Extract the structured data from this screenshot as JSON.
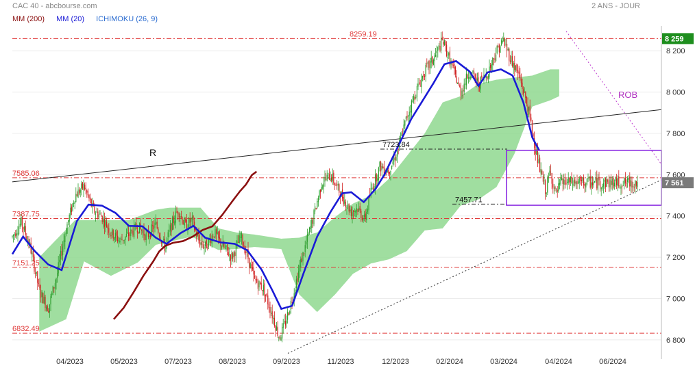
{
  "header": {
    "title": "CAC 40 - abcbourse.com",
    "period": "2 ANS - JOUR"
  },
  "legend": [
    {
      "label": "MM (200)",
      "color": "#8b1010"
    },
    {
      "label": "MM (20)",
      "color": "#1a1ad6"
    },
    {
      "label": "ICHIMOKU (26, 9)",
      "color": "#2a6bd0"
    }
  ],
  "chart_data": {
    "type": "candlestick",
    "y_axis": {
      "range": [
        6740,
        8320
      ],
      "ticks": [
        6800,
        7000,
        7200,
        7400,
        7600,
        7800,
        8000,
        8200
      ],
      "tick_labels": [
        "6 800",
        "7 000",
        "7 200",
        "7 400",
        "7 600",
        "7 800",
        "8 000",
        "8 200"
      ],
      "position": "right"
    },
    "x_axis": {
      "labels": [
        "04/2023",
        "05/2023",
        "07/2023",
        "08/2023",
        "09/2023",
        "11/2023",
        "12/2023",
        "02/2024",
        "03/2024",
        "04/2024",
        "06/2024"
      ]
    },
    "price_tags": [
      {
        "label": "8 259",
        "value": 8259,
        "color": "#1e8e1e"
      },
      {
        "label": "7 561",
        "value": 7561,
        "color": "#7a7a7a"
      }
    ],
    "levels": [
      {
        "label": "8259.19",
        "value": 8259.19
      },
      {
        "label": "7585.06",
        "value": 7585.06
      },
      {
        "label": "7387.75",
        "value": 7387.75
      },
      {
        "label": "7151.25",
        "value": 7151.25
      },
      {
        "label": "6832.49",
        "value": 6832.49
      }
    ],
    "annotations": [
      {
        "label": "R",
        "color": "#000000"
      },
      {
        "label": "ROB",
        "color": "#b030c0"
      },
      {
        "label": "7723.84",
        "value": 7723.84
      },
      {
        "label": "7457.71",
        "value": 7457.71
      }
    ],
    "range_box": {
      "top": 7718,
      "bottom": 7452,
      "color": "#8a2be2"
    },
    "ma200": [
      [
        0,
        6900
      ],
      [
        50,
        6955
      ],
      [
        100,
        7030
      ],
      [
        150,
        7110
      ],
      [
        200,
        7180
      ],
      [
        230,
        7228
      ],
      [
        260,
        7255
      ],
      [
        300,
        7270
      ],
      [
        350,
        7278
      ],
      [
        400,
        7300
      ],
      [
        450,
        7332
      ],
      [
        500,
        7350
      ],
      [
        550,
        7405
      ],
      [
        600,
        7470
      ],
      [
        640,
        7520
      ],
      [
        670,
        7552
      ],
      [
        700,
        7598
      ],
      [
        724,
        7615
      ]
    ],
    "ma20": [
      [
        0,
        7215
      ],
      [
        12,
        7300
      ],
      [
        25,
        7230
      ],
      [
        40,
        7165
      ],
      [
        55,
        7138
      ],
      [
        72,
        7375
      ],
      [
        85,
        7455
      ],
      [
        100,
        7450
      ],
      [
        115,
        7415
      ],
      [
        130,
        7352
      ],
      [
        145,
        7350
      ],
      [
        160,
        7295
      ],
      [
        172,
        7265
      ],
      [
        188,
        7318
      ],
      [
        202,
        7352
      ],
      [
        215,
        7295
      ],
      [
        232,
        7272
      ],
      [
        248,
        7265
      ],
      [
        262,
        7234
      ],
      [
        278,
        7140
      ],
      [
        290,
        7040
      ],
      [
        300,
        6950
      ],
      [
        312,
        6965
      ],
      [
        325,
        7125
      ],
      [
        340,
        7300
      ],
      [
        355,
        7420
      ],
      [
        368,
        7510
      ],
      [
        378,
        7515
      ],
      [
        392,
        7467
      ],
      [
        405,
        7530
      ],
      [
        415,
        7600
      ],
      [
        430,
        7735
      ],
      [
        445,
        7870
      ],
      [
        460,
        7975
      ],
      [
        470,
        8045
      ],
      [
        482,
        8135
      ],
      [
        495,
        8150
      ],
      [
        510,
        8100
      ],
      [
        520,
        8030
      ],
      [
        530,
        8095
      ],
      [
        545,
        8110
      ],
      [
        558,
        8080
      ],
      [
        570,
        7950
      ],
      [
        580,
        7780
      ],
      [
        588,
        7715
      ]
    ],
    "ichimoku_up": [
      [
        30,
        7200
      ],
      [
        70,
        7380
      ],
      [
        130,
        7380
      ],
      [
        160,
        7430
      ],
      [
        175,
        7440
      ],
      [
        210,
        7440
      ],
      [
        230,
        7340
      ],
      [
        250,
        7320
      ],
      [
        270,
        7310
      ],
      [
        300,
        7290
      ],
      [
        320,
        7295
      ],
      [
        340,
        7320
      ],
      [
        360,
        7395
      ],
      [
        380,
        7460
      ],
      [
        400,
        7500
      ],
      [
        420,
        7580
      ],
      [
        440,
        7690
      ],
      [
        460,
        7800
      ],
      [
        480,
        7950
      ],
      [
        500,
        7980
      ],
      [
        520,
        8040
      ],
      [
        540,
        8060
      ],
      [
        560,
        8070
      ],
      [
        580,
        8080
      ],
      [
        600,
        8110
      ],
      [
        610,
        8110
      ]
    ],
    "ichimoku_down": [
      [
        30,
        6840
      ],
      [
        60,
        6900
      ],
      [
        80,
        7180
      ],
      [
        110,
        7110
      ],
      [
        140,
        7175
      ],
      [
        160,
        7260
      ],
      [
        200,
        7300
      ],
      [
        230,
        7235
      ],
      [
        250,
        7240
      ],
      [
        270,
        7250
      ],
      [
        300,
        7240
      ],
      [
        320,
        7020
      ],
      [
        340,
        6935
      ],
      [
        360,
        7020
      ],
      [
        380,
        7120
      ],
      [
        400,
        7170
      ],
      [
        420,
        7190
      ],
      [
        440,
        7230
      ],
      [
        460,
        7330
      ],
      [
        480,
        7340
      ],
      [
        500,
        7450
      ],
      [
        520,
        7480
      ],
      [
        540,
        7540
      ],
      [
        560,
        7700
      ],
      [
        580,
        7930
      ],
      [
        600,
        7960
      ],
      [
        610,
        7980
      ]
    ],
    "candles_summary": {
      "first_close": 7300,
      "low": 6773,
      "high": 8259,
      "last_close": 7561
    }
  }
}
